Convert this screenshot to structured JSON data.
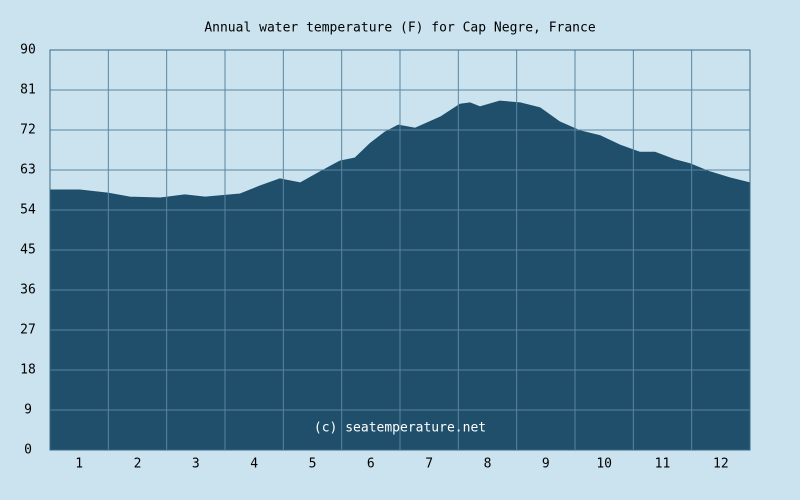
{
  "chart_data": {
    "type": "area",
    "title": "Annual water temperature (F) for Cap Negre, France",
    "annotation": "(c) seatemperature.net",
    "color": "#1f4f6b",
    "grid": true,
    "xlim": [
      0.5,
      12.5
    ],
    "xticks": [
      1,
      2,
      3,
      4,
      5,
      6,
      7,
      8,
      9,
      10,
      11,
      12
    ],
    "ylim": [
      0,
      90
    ],
    "yticks": [
      0,
      9,
      18,
      27,
      36,
      45,
      54,
      63,
      72,
      81,
      90
    ],
    "x": [
      0.5,
      1.01,
      1.49,
      1.87,
      2.39,
      2.81,
      3.16,
      3.76,
      4.1,
      4.44,
      4.79,
      5.13,
      5.47,
      5.73,
      5.99,
      6.24,
      6.47,
      6.76,
      7.19,
      7.53,
      7.7,
      7.87,
      8.21,
      8.56,
      8.9,
      9.24,
      9.59,
      9.93,
      10.27,
      10.61,
      10.87,
      11.21,
      11.47,
      11.81,
      12.16,
      12.5
    ],
    "values": [
      58.5,
      58.5,
      57.8,
      56.9,
      56.7,
      57.4,
      56.9,
      57.6,
      59.4,
      61,
      60.1,
      62.6,
      65,
      65.7,
      69,
      71.5,
      73.1,
      72.4,
      74.9,
      77.8,
      78.1,
      77.2,
      78.5,
      78.1,
      77,
      73.8,
      71.8,
      70.7,
      68.6,
      67,
      67,
      65.3,
      64.4,
      62.6,
      61.2,
      60.1
    ]
  }
}
